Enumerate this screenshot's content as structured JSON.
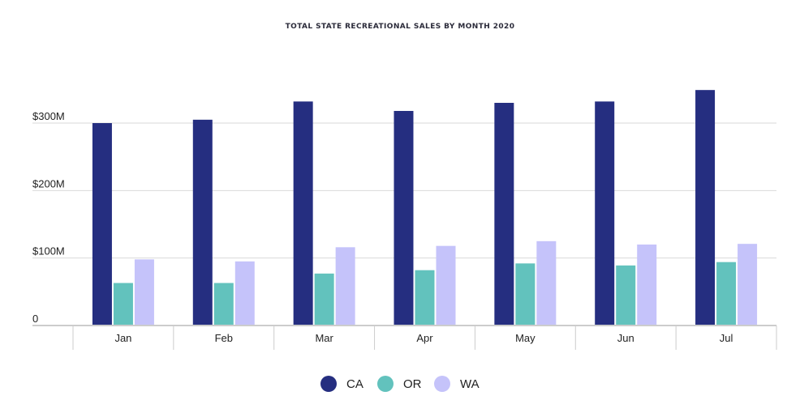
{
  "chart_data": {
    "type": "bar",
    "title": "TOTAL STATE RECREATIONAL SALES BY MONTH 2020",
    "xlabel": "",
    "ylabel": "",
    "categories": [
      "Jan",
      "Feb",
      "Mar",
      "Apr",
      "May",
      "Jun",
      "Jul"
    ],
    "y_ticks": [
      {
        "value": 0,
        "label": "0"
      },
      {
        "value": 100,
        "label": "$100M"
      },
      {
        "value": 200,
        "label": "$200M"
      },
      {
        "value": 300,
        "label": "$300M"
      }
    ],
    "ylim": [
      0,
      350
    ],
    "units": "millions USD",
    "grid": true,
    "legend_position": "bottom-center",
    "series": [
      {
        "name": "CA",
        "color": "#252e80",
        "values": [
          300,
          305,
          332,
          318,
          330,
          332,
          349
        ]
      },
      {
        "name": "OR",
        "color": "#62c2bd",
        "values": [
          63,
          63,
          77,
          82,
          92,
          89,
          94
        ]
      },
      {
        "name": "WA",
        "color": "#c5c3fa",
        "values": [
          98,
          95,
          116,
          118,
          125,
          120,
          121
        ]
      }
    ]
  }
}
